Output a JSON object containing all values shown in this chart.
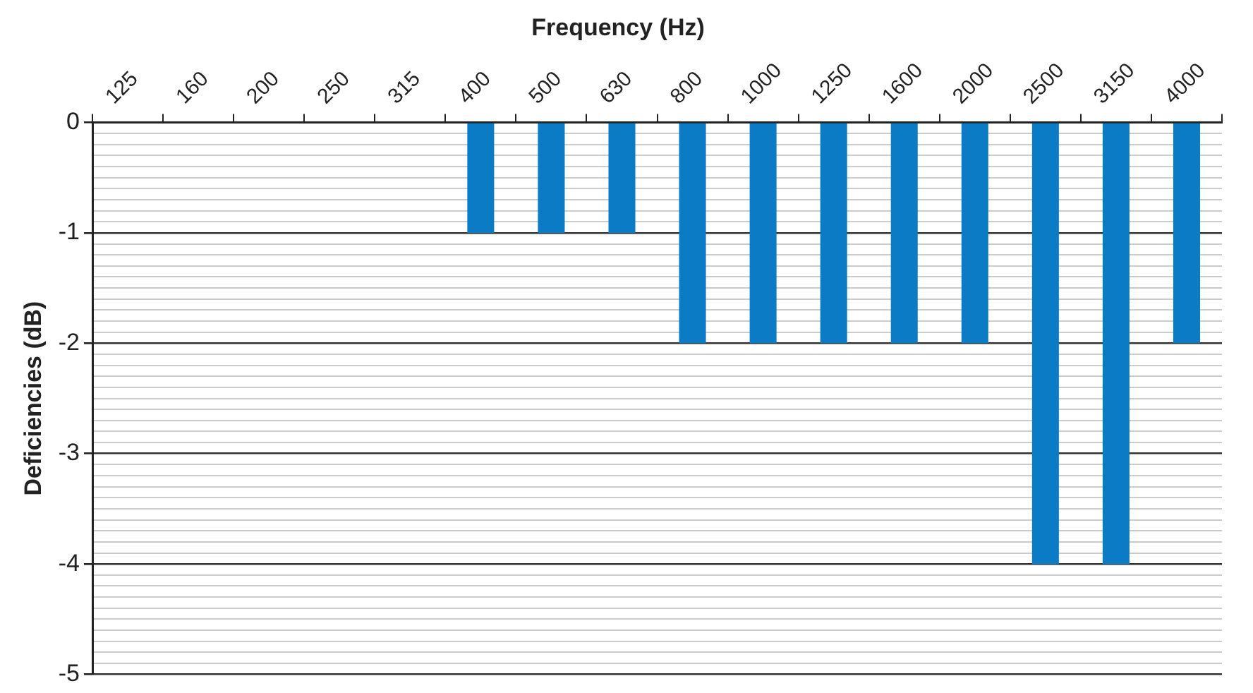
{
  "chart_data": {
    "type": "bar",
    "title": "Frequency (Hz)",
    "ylabel": "Deficiencies (dB)",
    "categories": [
      "125",
      "160",
      "200",
      "250",
      "315",
      "400",
      "500",
      "630",
      "800",
      "1000",
      "1250",
      "1600",
      "2000",
      "2500",
      "3150",
      "4000"
    ],
    "values": [
      0,
      0,
      0,
      0,
      0,
      -1,
      -1,
      -1,
      -2,
      -2,
      -2,
      -2,
      -2,
      -4,
      -4,
      -2
    ],
    "color": "#0a7bc4",
    "ylim": [
      -5,
      0
    ],
    "yticks": [
      0,
      {
        "value": -0.1,
        "label": null
      },
      {
        "value": -0.2,
        "label": null
      },
      {
        "value": -0.3,
        "label": null
      },
      {
        "value": -0.4,
        "label": null
      },
      {
        "value": -0.5,
        "label": null
      },
      {
        "value": -0.6,
        "label": null
      },
      {
        "value": -0.7,
        "label": null
      },
      {
        "value": -0.8,
        "label": null
      },
      {
        "value": -0.9,
        "label": null
      },
      -1,
      {
        "value": -1.1,
        "label": null
      },
      {
        "value": -1.2,
        "label": null
      },
      {
        "value": -1.3,
        "label": null
      },
      {
        "value": -1.4,
        "label": null
      },
      {
        "value": -1.5,
        "label": null
      },
      {
        "value": -1.6,
        "label": null
      },
      {
        "value": -1.7,
        "label": null
      },
      {
        "value": -1.8,
        "label": null
      },
      {
        "value": -1.9,
        "label": null
      },
      -2,
      {
        "value": -2.1,
        "label": null
      },
      {
        "value": -2.2,
        "label": null
      },
      {
        "value": -2.3,
        "label": null
      },
      {
        "value": -2.4,
        "label": null
      },
      {
        "value": -2.5,
        "label": null
      },
      {
        "value": -2.6,
        "label": null
      },
      {
        "value": -2.7,
        "label": null
      },
      {
        "value": -2.8,
        "label": null
      },
      {
        "value": -2.9,
        "label": null
      },
      -3,
      {
        "value": -3.1,
        "label": null
      },
      {
        "value": -3.2,
        "label": null
      },
      {
        "value": -3.3,
        "label": null
      },
      {
        "value": -3.4,
        "label": null
      },
      {
        "value": -3.5,
        "label": null
      },
      {
        "value": -3.6,
        "label": null
      },
      {
        "value": -3.7,
        "label": null
      },
      {
        "value": -3.8,
        "label": null
      },
      {
        "value": -3.9,
        "label": null
      },
      -4,
      {
        "value": -4.1,
        "label": null
      },
      {
        "value": -4.2,
        "label": null
      },
      {
        "value": -4.3,
        "label": null
      },
      {
        "value": -4.4,
        "label": null
      },
      {
        "value": -4.5,
        "label": null
      },
      {
        "value": -4.6,
        "label": null
      },
      {
        "value": -4.7,
        "label": null
      },
      {
        "value": -4.8,
        "label": null
      },
      {
        "value": -4.9,
        "label": null
      },
      -5
    ],
    "grid": "y",
    "legend": false
  }
}
